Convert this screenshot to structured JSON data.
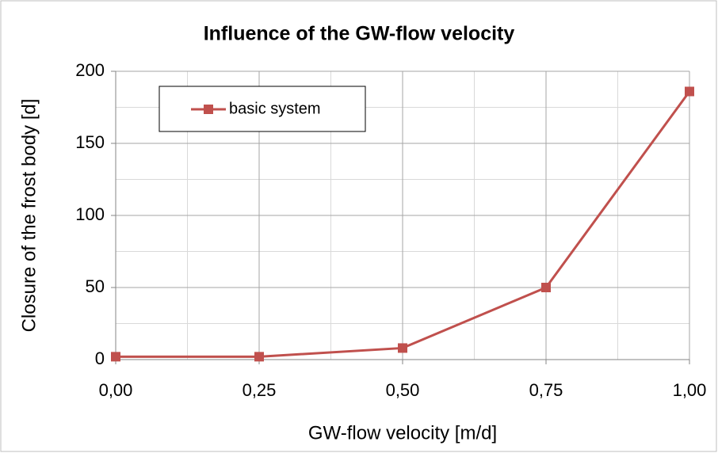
{
  "chart_data": {
    "type": "line",
    "title": "Influence of the GW-flow velocity",
    "x_label": "GW-flow velocity  [m/d]",
    "y_label": "Closure of the frost body [d]",
    "x": [
      0,
      0.25,
      0.5,
      0.75,
      1
    ],
    "series": [
      {
        "name": "basic system",
        "color": "#c0504d",
        "values": [
          2,
          2,
          8,
          50,
          186
        ]
      }
    ],
    "xlim": [
      0,
      1
    ],
    "xticks": [
      {
        "value": 0,
        "label": "0,00"
      },
      {
        "value": 0.25,
        "label": "0,25"
      },
      {
        "value": 0.5,
        "label": "0,50"
      },
      {
        "value": 0.75,
        "label": "0,75"
      },
      {
        "value": 1,
        "label": "1,00"
      }
    ],
    "ylim": [
      0,
      200
    ],
    "yticks": [
      0,
      50,
      100,
      150,
      200
    ],
    "grid": true,
    "legend": "upper left"
  }
}
